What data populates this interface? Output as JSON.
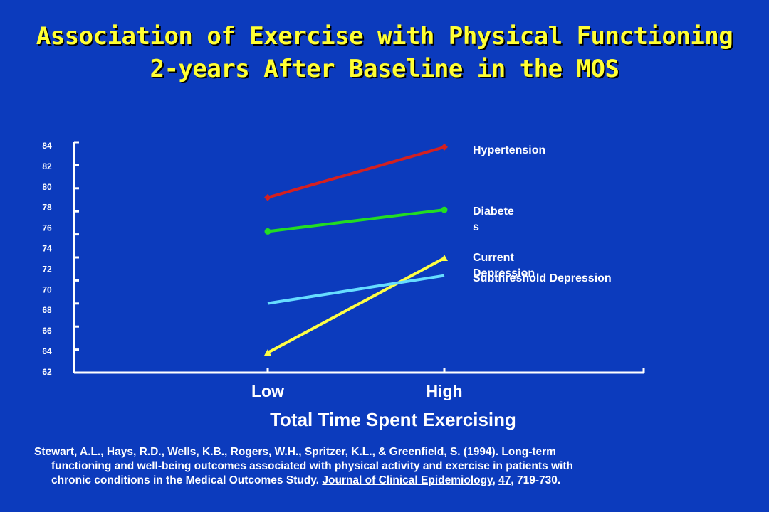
{
  "title": {
    "line1": "Association of Exercise with Physical Functioning",
    "line2": "2-years After Baseline in the MOS"
  },
  "colors": {
    "background": "#0c3bbd",
    "title": "#ffff33",
    "axis": "#ffffff"
  },
  "chart_data": {
    "type": "line",
    "categories": [
      "Low",
      "High"
    ],
    "xlabel": "Total Time Spent Exercising",
    "ylabel": "",
    "ylim": [
      62,
      84
    ],
    "yticks": [
      84,
      82,
      80,
      78,
      76,
      74,
      72,
      70,
      68,
      66,
      64,
      62
    ],
    "grid": false,
    "series": [
      {
        "name": "Hypertension",
        "values": [
          78.9,
          83.8
        ],
        "color": "#d42020",
        "marker": "diamond"
      },
      {
        "name": "Diabetes",
        "values": [
          75.6,
          77.7
        ],
        "color": "#22dd22",
        "marker": "circle"
      },
      {
        "name": "Current Depression",
        "values": [
          63.8,
          73.0
        ],
        "color": "#ffff44",
        "marker": "triangle"
      },
      {
        "name": "Subthreshold Depression",
        "values": [
          68.6,
          71.3
        ],
        "color": "#66ddff",
        "marker": "none"
      }
    ],
    "labels": [
      {
        "text": "Hypertension"
      },
      {
        "text": "Diabete\ns"
      },
      {
        "text": "Current\nDepression"
      },
      {
        "text": "Subthreshold Depression"
      }
    ]
  },
  "citation": {
    "line1": "Stewart, A.L., Hays, R.D., Wells, K.B., Rogers, W.H., Spritzer, K.L., & Greenfield, S.  (1994).  Long-term",
    "line2": "functioning and well-being outcomes associated with physical activity and exercise in patients with",
    "line3_pre": "chronic conditions in the Medical Outcomes Study.  ",
    "journal": "Journal of Clinical Epidemiology",
    "sep": ", ",
    "volume": "47",
    "pages": ", 719-730."
  }
}
